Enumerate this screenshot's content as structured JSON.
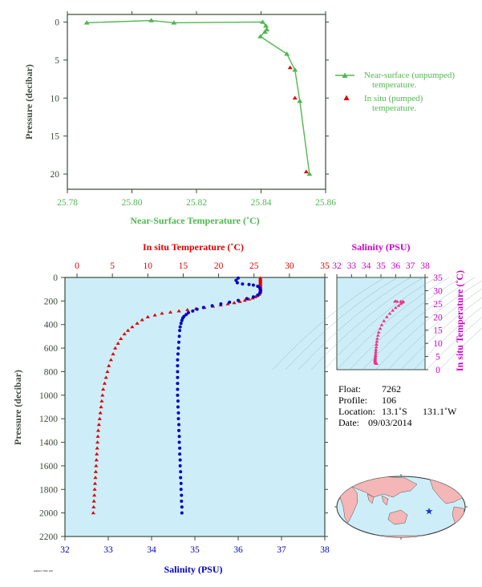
{
  "colors": {
    "axis": "#3b4a3b",
    "green": "#4fb84f",
    "red": "#e00000",
    "blue": "#0000c8",
    "magenta": "#d000c8",
    "panel_bg": "#cdeef8",
    "ts_points": "#ee3388",
    "land": "#f4b6b6",
    "ocean": "#cdeef8",
    "star": "#1a38c8"
  },
  "chart_data": [
    {
      "id": "near-surface",
      "type": "line",
      "xlabel": "Near-Surface Temperature (˚C)",
      "ylabel": "Pressure (decibar)",
      "xlim": [
        25.78,
        25.86
      ],
      "ylim": [
        22,
        -1
      ],
      "xticks": [
        "25.78",
        "25.80",
        "25.82",
        "25.84",
        "25.86"
      ],
      "yticks": [
        "0",
        "5",
        "10",
        "15",
        "20"
      ],
      "series": [
        {
          "name": "Near-surface (unpumped) temperature.",
          "marker": "triangle",
          "color": "green",
          "points": [
            [
              25.786,
              0.1
            ],
            [
              25.806,
              -0.2
            ],
            [
              25.813,
              0.1
            ],
            [
              25.8405,
              0.0
            ],
            [
              25.8415,
              0.5
            ],
            [
              25.8418,
              1.0
            ],
            [
              25.8412,
              1.3
            ],
            [
              25.8398,
              1.9
            ],
            [
              25.848,
              4.2
            ],
            [
              25.8505,
              6.3
            ],
            [
              25.852,
              10.4
            ],
            [
              25.855,
              20.0
            ]
          ]
        },
        {
          "name": "In situ (pumped) temperature.",
          "marker": "triangle",
          "color": "red",
          "points": [
            [
              25.849,
              6.0
            ],
            [
              25.8505,
              10.0
            ],
            [
              25.854,
              19.7
            ]
          ]
        }
      ]
    },
    {
      "id": "profile",
      "type": "scatter",
      "ylabel": "Pressure (decibar)",
      "xlabel_bottom": "Salinity (PSU)",
      "xlabel_top": "In situ Temperature (˚C)",
      "ylim": [
        2200,
        0
      ],
      "yticks": [
        "0",
        "200",
        "400",
        "600",
        "800",
        "1000",
        "1200",
        "1400",
        "1600",
        "1800",
        "2000",
        "2200"
      ],
      "x_bottom_lim": [
        32,
        38
      ],
      "x_bottom_ticks": [
        "32",
        "33",
        "34",
        "35",
        "36",
        "37",
        "38"
      ],
      "x_top_lim": [
        0,
        35
      ],
      "x_top_ticks": [
        "0",
        "5",
        "10",
        "15",
        "20",
        "25",
        "30",
        "35"
      ],
      "temperature": {
        "color": "red",
        "marker": "triangle",
        "points": [
          [
            25.9,
            5
          ],
          [
            25.9,
            15
          ],
          [
            25.9,
            25
          ],
          [
            25.9,
            35
          ],
          [
            25.9,
            45
          ],
          [
            25.9,
            55
          ],
          [
            25.9,
            65
          ],
          [
            25.9,
            75
          ],
          [
            25.9,
            85
          ],
          [
            25.9,
            95
          ],
          [
            25.9,
            105
          ],
          [
            25.9,
            115
          ],
          [
            25.9,
            125
          ],
          [
            25.8,
            135
          ],
          [
            25.7,
            145
          ],
          [
            25.5,
            155
          ],
          [
            25.2,
            165
          ],
          [
            24.8,
            175
          ],
          [
            24.3,
            185
          ],
          [
            23.7,
            195
          ],
          [
            23.0,
            205
          ],
          [
            22.2,
            215
          ],
          [
            21.3,
            225
          ],
          [
            20.3,
            235
          ],
          [
            19.2,
            245
          ],
          [
            18.0,
            255
          ],
          [
            16.8,
            265
          ],
          [
            15.6,
            275
          ],
          [
            14.4,
            285
          ],
          [
            13.2,
            295
          ],
          [
            12.0,
            305
          ],
          [
            11.0,
            320
          ],
          [
            10.0,
            335
          ],
          [
            9.2,
            360
          ],
          [
            8.5,
            390
          ],
          [
            7.8,
            420
          ],
          [
            7.2,
            450
          ],
          [
            6.7,
            480
          ],
          [
            6.2,
            520
          ],
          [
            5.8,
            560
          ],
          [
            5.4,
            600
          ],
          [
            5.1,
            650
          ],
          [
            4.8,
            700
          ],
          [
            4.5,
            750
          ],
          [
            4.3,
            800
          ],
          [
            4.1,
            850
          ],
          [
            3.9,
            900
          ],
          [
            3.7,
            950
          ],
          [
            3.6,
            1000
          ],
          [
            3.5,
            1050
          ],
          [
            3.4,
            1100
          ],
          [
            3.3,
            1150
          ],
          [
            3.2,
            1200
          ],
          [
            3.1,
            1250
          ],
          [
            3.0,
            1300
          ],
          [
            2.95,
            1350
          ],
          [
            2.9,
            1400
          ],
          [
            2.85,
            1450
          ],
          [
            2.8,
            1500
          ],
          [
            2.75,
            1550
          ],
          [
            2.7,
            1600
          ],
          [
            2.65,
            1650
          ],
          [
            2.6,
            1700
          ],
          [
            2.55,
            1750
          ],
          [
            2.5,
            1800
          ],
          [
            2.45,
            1850
          ],
          [
            2.4,
            1900
          ],
          [
            2.35,
            1950
          ],
          [
            2.3,
            2000
          ]
        ]
      },
      "salinity": {
        "color": "blue",
        "marker": "circle",
        "points": [
          [
            36.0,
            5
          ],
          [
            35.95,
            25
          ],
          [
            35.98,
            45
          ],
          [
            36.1,
            55
          ],
          [
            36.25,
            60
          ],
          [
            36.35,
            65
          ],
          [
            36.45,
            75
          ],
          [
            36.5,
            90
          ],
          [
            36.52,
            110
          ],
          [
            36.5,
            130
          ],
          [
            36.45,
            150
          ],
          [
            36.35,
            165
          ],
          [
            36.2,
            180
          ],
          [
            36.0,
            195
          ],
          [
            35.8,
            210
          ],
          [
            35.6,
            225
          ],
          [
            35.4,
            240
          ],
          [
            35.2,
            255
          ],
          [
            35.05,
            270
          ],
          [
            34.95,
            285
          ],
          [
            34.85,
            300
          ],
          [
            34.8,
            315
          ],
          [
            34.75,
            330
          ],
          [
            34.72,
            345
          ],
          [
            34.7,
            365
          ],
          [
            34.68,
            390
          ],
          [
            34.66,
            420
          ],
          [
            34.65,
            450
          ],
          [
            34.64,
            500
          ],
          [
            34.63,
            550
          ],
          [
            34.62,
            600
          ],
          [
            34.61,
            650
          ],
          [
            34.6,
            700
          ],
          [
            34.6,
            750
          ],
          [
            34.6,
            800
          ],
          [
            34.6,
            850
          ],
          [
            34.6,
            900
          ],
          [
            34.6,
            950
          ],
          [
            34.6,
            1000
          ],
          [
            34.61,
            1050
          ],
          [
            34.61,
            1100
          ],
          [
            34.62,
            1150
          ],
          [
            34.62,
            1200
          ],
          [
            34.63,
            1250
          ],
          [
            34.63,
            1300
          ],
          [
            34.64,
            1350
          ],
          [
            34.64,
            1400
          ],
          [
            34.65,
            1450
          ],
          [
            34.65,
            1500
          ],
          [
            34.66,
            1550
          ],
          [
            34.66,
            1600
          ],
          [
            34.67,
            1650
          ],
          [
            34.67,
            1700
          ],
          [
            34.68,
            1750
          ],
          [
            34.68,
            1800
          ],
          [
            34.69,
            1850
          ],
          [
            34.69,
            1900
          ],
          [
            34.7,
            1950
          ],
          [
            34.7,
            2000
          ]
        ]
      }
    },
    {
      "id": "ts-diagram",
      "type": "scatter",
      "xlabel_top": "Salinity (PSU)",
      "ylabel_right": "In situ Temperature (˚C)",
      "xlim": [
        32,
        38
      ],
      "ylim": [
        0,
        35
      ],
      "xticks": [
        "32",
        "33",
        "34",
        "35",
        "36",
        "37",
        "38"
      ],
      "yticks": [
        "0",
        "5",
        "10",
        "15",
        "20",
        "25",
        "30",
        "35"
      ],
      "points": [
        [
          36.0,
          25.9
        ],
        [
          35.95,
          25.9
        ],
        [
          36.1,
          25.9
        ],
        [
          36.35,
          25.9
        ],
        [
          36.5,
          25.9
        ],
        [
          36.52,
          25.8
        ],
        [
          36.45,
          25.5
        ],
        [
          36.35,
          25.0
        ],
        [
          36.2,
          24.3
        ],
        [
          36.0,
          23.5
        ],
        [
          35.8,
          22.5
        ],
        [
          35.6,
          21.3
        ],
        [
          35.4,
          20.0
        ],
        [
          35.2,
          18.5
        ],
        [
          35.05,
          17.0
        ],
        [
          34.95,
          15.6
        ],
        [
          34.85,
          14.2
        ],
        [
          34.8,
          13.0
        ],
        [
          34.75,
          11.8
        ],
        [
          34.72,
          10.7
        ],
        [
          34.7,
          9.6
        ],
        [
          34.68,
          8.6
        ],
        [
          34.66,
          7.6
        ],
        [
          34.65,
          6.8
        ],
        [
          34.64,
          6.0
        ],
        [
          34.63,
          5.3
        ],
        [
          34.62,
          4.7
        ],
        [
          34.61,
          4.2
        ],
        [
          34.6,
          3.8
        ],
        [
          34.6,
          3.4
        ],
        [
          34.61,
          3.1
        ],
        [
          34.62,
          2.8
        ],
        [
          34.64,
          2.6
        ],
        [
          34.66,
          2.45
        ],
        [
          34.68,
          2.35
        ],
        [
          34.7,
          2.3
        ]
      ]
    }
  ],
  "info": {
    "float_label": "Float:",
    "float_value": "7262",
    "profile_label": "Profile:",
    "profile_value": "106",
    "location_label": "Location:",
    "location_lat": "13.1˚S",
    "location_lon": "131.1˚W",
    "date_label": "Date:",
    "date_value": "09/03/2014"
  },
  "map": {
    "float_lat": -13.1,
    "float_lon": -131.1
  }
}
